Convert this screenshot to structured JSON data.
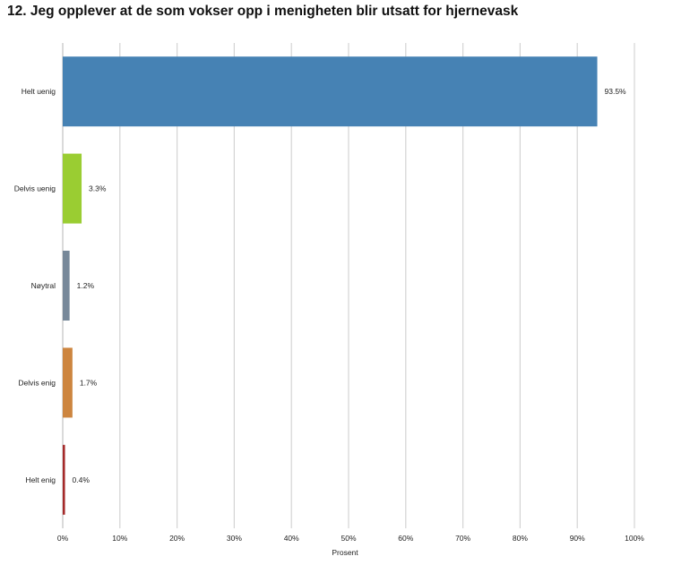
{
  "chart_data": {
    "type": "bar",
    "orientation": "horizontal",
    "title": "12. Jeg opplever at de som vokser opp i menigheten blir utsatt for hjernevask",
    "xlabel": "Prosent",
    "ylabel": "",
    "xlim": [
      0,
      100
    ],
    "grid": true,
    "categories": [
      "Helt uenig",
      "Delvis uenig",
      "Nøytral",
      "Delvis enig",
      "Helt enig"
    ],
    "values": [
      93.5,
      3.3,
      1.2,
      1.7,
      0.4
    ],
    "value_labels": [
      "93.5%",
      "3.3%",
      "1.2%",
      "1.7%",
      "0.4%"
    ],
    "colors": [
      "#4682b4",
      "#9acd32",
      "#778899",
      "#cd853f",
      "#a52a2a"
    ],
    "ticks": [
      0,
      10,
      20,
      30,
      40,
      50,
      60,
      70,
      80,
      90,
      100
    ],
    "tick_labels": [
      "0%",
      "10%",
      "20%",
      "30%",
      "40%",
      "50%",
      "60%",
      "70%",
      "80%",
      "90%",
      "100%"
    ]
  }
}
